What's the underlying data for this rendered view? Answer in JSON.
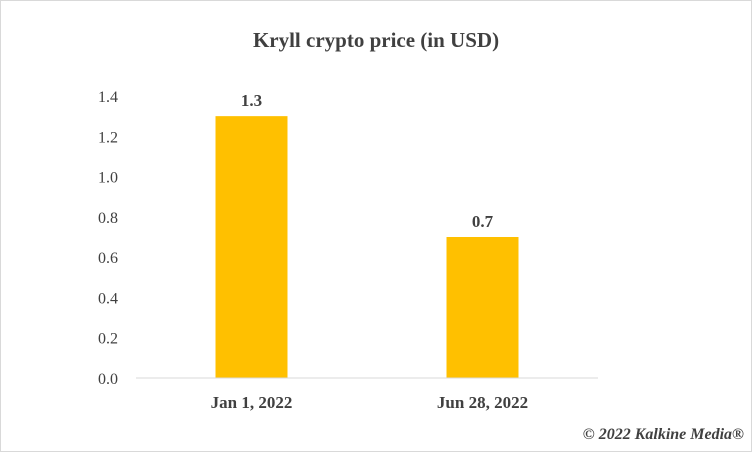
{
  "chart_data": {
    "type": "bar",
    "title": "Kryll  crypto price (in USD)",
    "categories": [
      "Jan 1, 2022",
      "Jun 28, 2022"
    ],
    "values": [
      1.3,
      0.7
    ],
    "data_labels": [
      "1.3",
      "0.7"
    ],
    "ylim": [
      0,
      1.4
    ],
    "yticks": [
      "0.0",
      "0.2",
      "0.4",
      "0.6",
      "0.8",
      "1.0",
      "1.2",
      "1.4"
    ],
    "xlabel": "",
    "ylabel": "",
    "grid": false,
    "legend": "none",
    "bar_color": "#FFC000"
  },
  "footer": {
    "copyright": "© 2022 Kalkine Media®"
  }
}
